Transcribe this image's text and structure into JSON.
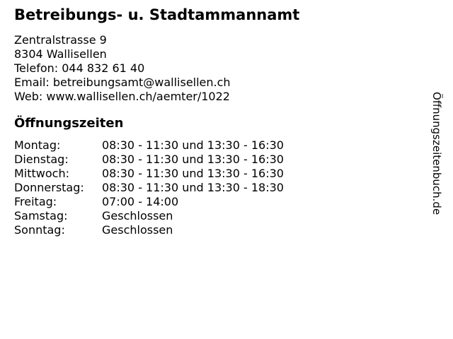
{
  "header": {
    "title": "Betreibungs- u. Stadtammannamt"
  },
  "contact": {
    "street": "Zentralstrasse 9",
    "city": "8304 Wallisellen",
    "phone": "Telefon: 044 832 61 40",
    "email": "Email: betreibungsamt@wallisellen.ch",
    "web": "Web: www.wallisellen.ch/aemter/1022"
  },
  "hours": {
    "heading": "Öffnungszeiten",
    "rows": [
      {
        "day": "Montag:",
        "hours": "08:30 - 11:30 und 13:30 - 16:30"
      },
      {
        "day": "Dienstag:",
        "hours": "08:30 - 11:30 und 13:30 - 16:30"
      },
      {
        "day": "Mittwoch:",
        "hours": "08:30 - 11:30 und 13:30 - 16:30"
      },
      {
        "day": "Donnerstag:",
        "hours": "08:30 - 11:30 und 13:30 - 18:30"
      },
      {
        "day": "Freitag:",
        "hours": "07:00 - 14:00"
      },
      {
        "day": "Samstag:",
        "hours": "Geschlossen"
      },
      {
        "day": "Sonntag:",
        "hours": "Geschlossen"
      }
    ]
  },
  "watermark": {
    "text": "Öffnungszeitenbuch.de"
  },
  "colors": {
    "text": "#000000",
    "background": "#ffffff"
  }
}
